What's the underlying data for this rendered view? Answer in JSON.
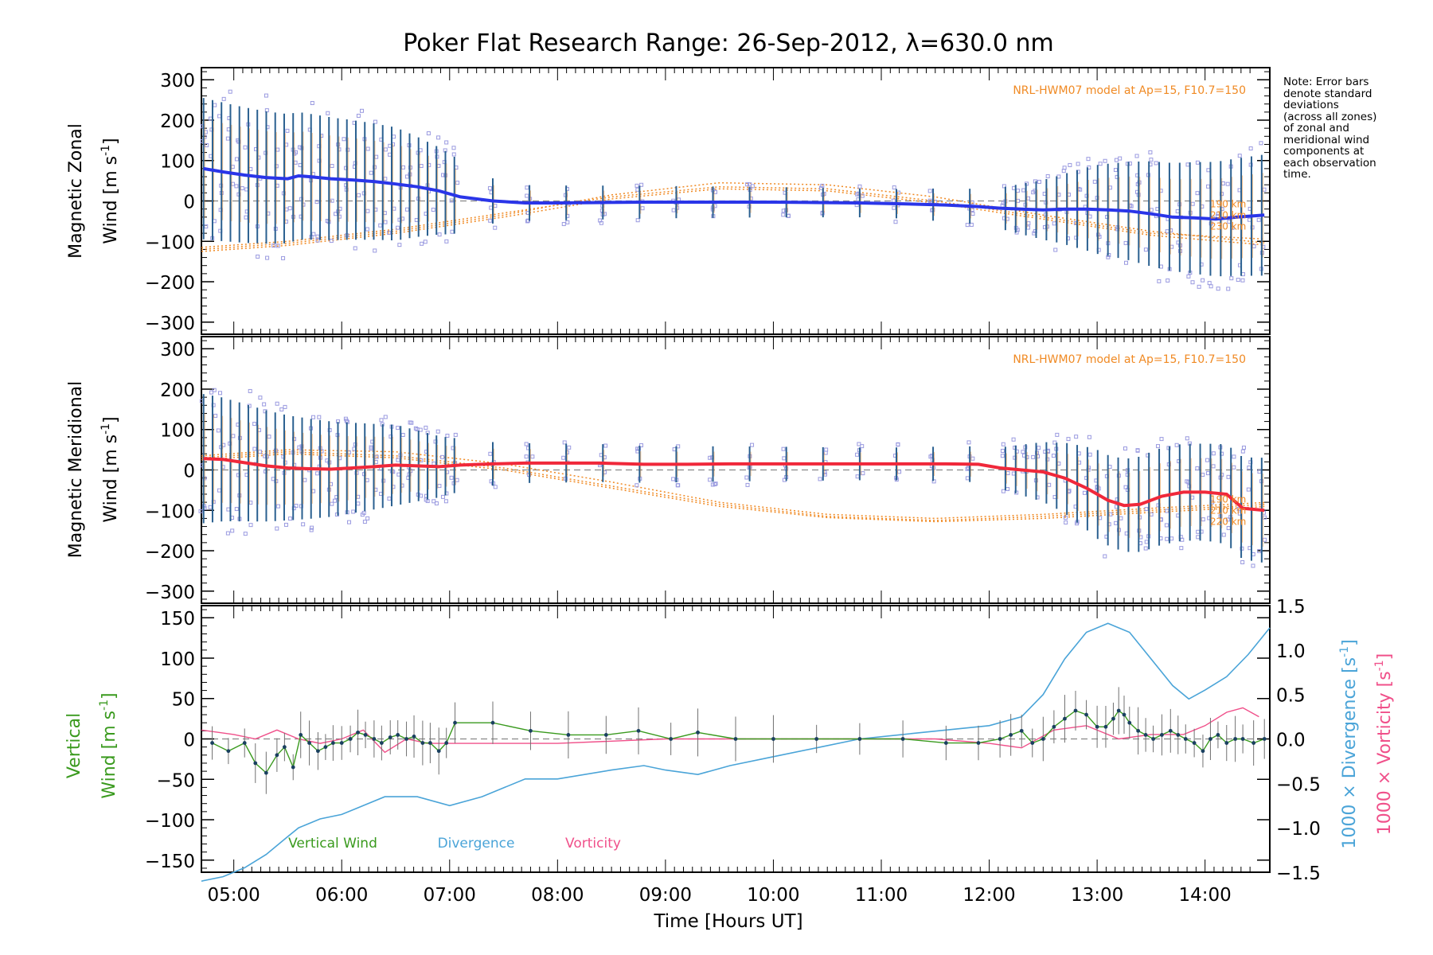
{
  "title": "Poker Flat Research Range: 26-Sep-2012, λ=630.0 nm",
  "note": [
    "Note: Error bars",
    "denote standard",
    "deviations",
    "(across all zones)",
    "of zonal and",
    "meridional wind",
    "components at",
    "each observation",
    "time."
  ],
  "xaxis": {
    "label": "Time [Hours UT]",
    "ticks": [
      "05:00",
      "06:00",
      "07:00",
      "08:00",
      "09:00",
      "10:00",
      "11:00",
      "12:00",
      "13:00",
      "14:00"
    ],
    "range_hours": [
      4.7,
      14.6
    ]
  },
  "colors": {
    "zonal_mean": "#2a35e8",
    "meridional_mean": "#f0283a",
    "model": "#f08a24",
    "vertical": "#3a9a1e",
    "divergence": "#4aa4d8",
    "vorticity": "#f0508a",
    "scatter": "#9a9ae0",
    "errorbar": "#2a6090",
    "vertical_errorbar": "#707070",
    "zero_line": "#888888"
  },
  "panels": {
    "zonal": {
      "ylabel_line1": "Magnetic Zonal",
      "ylabel_line2": "Wind [m s",
      "ylabel_sup": "-1",
      "ylabel_end": "]",
      "yticks": [
        "300",
        "200",
        "100",
        "0",
        "−100",
        "−200",
        "−300"
      ],
      "model_label": "NRL-HWM07 model at Ap=15, F10.7=150",
      "alt_labels": [
        "190 km",
        "210 km",
        "230 km"
      ]
    },
    "meridional": {
      "ylabel_line1": "Magnetic Meridional",
      "ylabel_line2": "Wind [m s",
      "ylabel_sup": "-1",
      "ylabel_end": "]",
      "yticks": [
        "300",
        "200",
        "100",
        "0",
        "−100",
        "−200",
        "−300"
      ],
      "model_label": "NRL-HWM07 model at Ap=15, F10.7=150",
      "alt_labels": [
        "190 km",
        "210 km",
        "220 km"
      ]
    },
    "vertical": {
      "ylabel_line1": "Vertical",
      "ylabel_line2": "Wind [m s",
      "ylabel_sup": "-1",
      "ylabel_end": "]",
      "yticks": [
        "150",
        "100",
        "50",
        "0",
        "−50",
        "−100",
        "−150"
      ],
      "right_yticks": [
        "1.5",
        "1.0",
        "0.5",
        "0.0",
        "−0.5",
        "−1.0",
        "−1.5"
      ],
      "div_label": "1000 × Divergence [s",
      "vor_label": "1000 × Vorticity [s",
      "right_sup": "-1",
      "right_end": "]",
      "legend": [
        "Vertical Wind",
        "Divergence",
        "Vorticity"
      ]
    }
  },
  "chart_data": [
    {
      "type": "line",
      "panel": "zonal",
      "title": "Poker Flat Research Range: 26-Sep-2012, λ=630.0 nm",
      "xlabel": "Time [Hours UT]",
      "ylabel": "Magnetic Zonal Wind [m s-1]",
      "ylim": [
        -330,
        330
      ],
      "series": [
        {
          "role": "mean",
          "x": [
            4.72,
            4.9,
            5.1,
            5.3,
            5.5,
            5.6,
            5.7,
            5.9,
            6.1,
            6.3,
            6.5,
            6.7,
            6.9,
            7.1,
            7.4,
            7.7,
            8.0,
            8.4,
            8.8,
            9.2,
            9.6,
            10.0,
            10.4,
            10.8,
            11.2,
            11.6,
            11.9,
            12.1,
            12.3,
            12.5,
            12.7,
            12.9,
            13.1,
            13.3,
            13.5,
            13.7,
            13.9,
            14.1,
            14.3,
            14.55
          ],
          "y": [
            80,
            72,
            64,
            58,
            55,
            62,
            60,
            55,
            52,
            48,
            42,
            35,
            25,
            10,
            0,
            -5,
            -5,
            -4,
            -3,
            -3,
            -3,
            -3,
            -4,
            -5,
            -7,
            -10,
            -14,
            -18,
            -20,
            -22,
            -20,
            -20,
            -22,
            -25,
            -32,
            -40,
            -42,
            -45,
            -40,
            -35
          ]
        },
        {
          "role": "error_half_width",
          "x": [
            4.72,
            5.5,
            6.5,
            7.0,
            7.5,
            9.0,
            11.0,
            12.0,
            12.6,
            13.0,
            13.5,
            14.0,
            14.55
          ],
          "y": [
            175,
            160,
            140,
            100,
            45,
            40,
            35,
            45,
            80,
            110,
            130,
            140,
            150
          ]
        }
      ],
      "model": [
        {
          "name": "",
          "x": [
            4.7,
            5.5,
            6.5,
            7.5,
            8.5,
            9.5,
            10.5,
            11.5,
            12.5,
            13.5,
            14.6
          ],
          "y": [
            -120,
            -105,
            -75,
            -35,
            15,
            45,
            40,
            10,
            -35,
            -75,
            -105
          ]
        },
        {
          "name": "",
          "x": [
            4.7,
            5.5,
            6.5,
            7.5,
            8.5,
            9.5,
            10.5,
            11.5,
            12.5,
            13.5,
            14.6
          ],
          "y": [
            -115,
            -100,
            -70,
            -30,
            10,
            35,
            30,
            0,
            -40,
            -80,
            -95
          ]
        },
        {
          "name": "",
          "x": [
            4.7,
            5.5,
            6.5,
            7.5,
            8.5,
            9.5,
            10.5,
            11.5,
            12.5,
            13.5,
            14.6
          ],
          "y": [
            -125,
            -110,
            -80,
            -40,
            5,
            30,
            25,
            -5,
            -45,
            -85,
            -110
          ]
        }
      ]
    },
    {
      "type": "line",
      "panel": "meridional",
      "xlabel": "Time [Hours UT]",
      "ylabel": "Magnetic Meridional Wind [m s-1]",
      "ylim": [
        -330,
        330
      ],
      "series": [
        {
          "role": "mean",
          "x": [
            4.72,
            4.9,
            5.1,
            5.3,
            5.5,
            5.7,
            5.9,
            6.1,
            6.3,
            6.5,
            6.7,
            6.9,
            7.1,
            7.4,
            7.7,
            8.0,
            8.4,
            8.8,
            9.2,
            9.6,
            10.0,
            10.4,
            10.8,
            11.2,
            11.6,
            11.9,
            12.1,
            12.3,
            12.5,
            12.7,
            12.9,
            13.1,
            13.25,
            13.4,
            13.6,
            13.8,
            14.0,
            14.2,
            14.35,
            14.55
          ],
          "y": [
            28,
            26,
            18,
            10,
            5,
            3,
            2,
            5,
            8,
            12,
            10,
            8,
            12,
            15,
            17,
            17,
            17,
            14,
            14,
            15,
            15,
            15,
            15,
            15,
            15,
            14,
            5,
            0,
            -5,
            -20,
            -45,
            -75,
            -88,
            -85,
            -65,
            -55,
            -55,
            -60,
            -95,
            -100
          ]
        },
        {
          "role": "error_half_width",
          "x": [
            4.72,
            5.5,
            6.5,
            7.0,
            7.5,
            9.0,
            11.0,
            12.0,
            12.6,
            13.0,
            13.5,
            14.0,
            14.55
          ],
          "y": [
            160,
            130,
            100,
            70,
            50,
            45,
            40,
            45,
            80,
            110,
            120,
            120,
            130
          ]
        }
      ],
      "model": [
        {
          "name": "",
          "x": [
            4.7,
            5.5,
            6.5,
            7.5,
            8.5,
            9.5,
            10.5,
            11.5,
            12.5,
            13.5,
            14.6
          ],
          "y": [
            35,
            50,
            45,
            15,
            -30,
            -80,
            -110,
            -120,
            -110,
            -95,
            -80
          ]
        },
        {
          "name": "",
          "x": [
            4.7,
            5.5,
            6.5,
            7.5,
            8.5,
            9.5,
            10.5,
            11.5,
            12.5,
            13.5,
            14.6
          ],
          "y": [
            30,
            45,
            35,
            5,
            -40,
            -85,
            -115,
            -125,
            -115,
            -100,
            -85
          ]
        },
        {
          "name": "",
          "x": [
            4.7,
            5.5,
            6.5,
            7.5,
            8.5,
            9.5,
            10.5,
            11.5,
            12.5,
            13.5,
            14.6
          ],
          "y": [
            25,
            40,
            30,
            0,
            -45,
            -90,
            -118,
            -128,
            -120,
            -105,
            -90
          ]
        }
      ]
    },
    {
      "type": "line",
      "panel": "vertical",
      "xlabel": "Time [Hours UT]",
      "ylabel": "Vertical Wind [m s-1]",
      "ylim": [
        -165,
        165
      ],
      "y2label": "1000 × Divergence [s-1] / 1000 × Vorticity [s-1]",
      "y2lim": [
        -1.5,
        1.5
      ],
      "series": [
        {
          "name": "Vertical Wind",
          "axis": "left",
          "x": [
            4.8,
            4.95,
            5.1,
            5.2,
            5.3,
            5.4,
            5.47,
            5.55,
            5.62,
            5.7,
            5.78,
            5.85,
            5.92,
            6.0,
            6.08,
            6.15,
            6.22,
            6.3,
            6.37,
            6.45,
            6.52,
            6.6,
            6.67,
            6.75,
            6.82,
            6.9,
            6.97,
            7.05,
            7.4,
            7.75,
            8.1,
            8.45,
            8.75,
            9.05,
            9.3,
            9.65,
            10.0,
            10.4,
            10.8,
            11.2,
            11.6,
            11.9,
            12.1,
            12.2,
            12.3,
            12.4,
            12.5,
            12.6,
            12.7,
            12.8,
            12.9,
            13.0,
            13.08,
            13.15,
            13.2,
            13.25,
            13.3,
            13.38,
            13.45,
            13.52,
            13.6,
            13.68,
            13.75,
            13.82,
            13.9,
            13.98,
            14.05,
            14.12,
            14.2,
            14.28,
            14.35,
            14.45,
            14.55
          ],
          "y": [
            -5,
            -15,
            -5,
            -30,
            -42,
            -20,
            -10,
            -35,
            5,
            -5,
            -15,
            -10,
            -5,
            -5,
            0,
            8,
            5,
            0,
            -5,
            2,
            5,
            0,
            3,
            -5,
            -5,
            -15,
            -5,
            20,
            20,
            10,
            5,
            5,
            10,
            0,
            8,
            0,
            0,
            0,
            0,
            0,
            -5,
            -5,
            0,
            5,
            10,
            -5,
            0,
            15,
            25,
            35,
            30,
            15,
            15,
            25,
            35,
            30,
            20,
            10,
            5,
            0,
            5,
            10,
            5,
            0,
            -5,
            -15,
            0,
            5,
            -5,
            0,
            0,
            -5,
            0
          ]
        },
        {
          "name": "Divergence",
          "axis": "right",
          "x": [
            4.7,
            4.9,
            5.1,
            5.3,
            5.5,
            5.6,
            5.8,
            6.0,
            6.2,
            6.4,
            6.7,
            7.0,
            7.3,
            7.7,
            8.0,
            8.5,
            8.8,
            9.0,
            9.3,
            9.6,
            10.0,
            10.4,
            10.8,
            11.2,
            11.6,
            12.0,
            12.3,
            12.5,
            12.7,
            12.9,
            13.1,
            13.3,
            13.5,
            13.7,
            13.85,
            14.0,
            14.2,
            14.4,
            14.6
          ],
          "y": [
            -1.6,
            -1.55,
            -1.45,
            -1.3,
            -1.1,
            -1.0,
            -0.9,
            -0.85,
            -0.75,
            -0.65,
            -0.65,
            -0.75,
            -0.65,
            -0.45,
            -0.45,
            -0.35,
            -0.3,
            -0.35,
            -0.4,
            -0.3,
            -0.2,
            -0.1,
            0.0,
            0.05,
            0.1,
            0.15,
            0.25,
            0.5,
            0.9,
            1.2,
            1.3,
            1.2,
            0.9,
            0.6,
            0.45,
            0.55,
            0.7,
            0.95,
            1.25
          ]
        },
        {
          "name": "Vorticity",
          "axis": "right",
          "x": [
            4.7,
            5.0,
            5.2,
            5.4,
            5.6,
            5.8,
            6.0,
            6.2,
            6.4,
            6.6,
            6.8,
            7.0,
            7.5,
            8.0,
            9.0,
            10.0,
            11.0,
            11.5,
            12.0,
            12.3,
            12.6,
            12.9,
            13.2,
            13.5,
            13.8,
            14.0,
            14.2,
            14.35,
            14.5
          ],
          "y": [
            0.1,
            0.05,
            0.0,
            0.1,
            0.0,
            -0.05,
            0.0,
            0.1,
            -0.15,
            0.0,
            -0.05,
            -0.05,
            -0.05,
            -0.05,
            0.0,
            0.0,
            0.0,
            0.0,
            -0.05,
            -0.1,
            0.1,
            0.15,
            0.0,
            0.05,
            0.05,
            0.15,
            0.3,
            0.35,
            0.25
          ]
        }
      ],
      "legend": [
        "Vertical Wind",
        "Divergence",
        "Vorticity"
      ]
    }
  ]
}
